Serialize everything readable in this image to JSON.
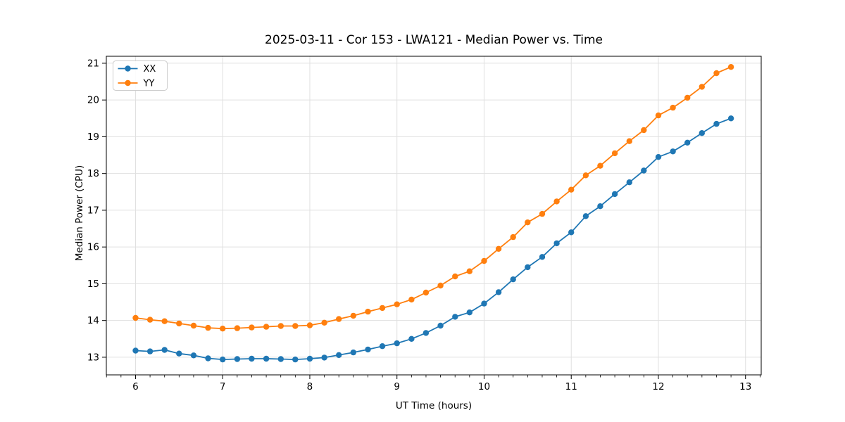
{
  "figure": {
    "background": "#ffffff",
    "text_color": "#000000"
  },
  "chart_data": {
    "type": "line",
    "title": "2025-03-11 - Cor 153 - LWA121 - Median Power vs. Time",
    "xlabel": "UT Time (hours)",
    "ylabel": "Median Power (CPU)",
    "xlim": [
      5.665,
      13.18
    ],
    "ylim": [
      12.52,
      21.19
    ],
    "xticks": [
      6,
      7,
      8,
      9,
      10,
      11,
      12,
      13
    ],
    "yticks": [
      13,
      14,
      15,
      16,
      17,
      18,
      19,
      20,
      21
    ],
    "x_minor_step": 0.166667,
    "grid": true,
    "grid_color": "#e0e0e0",
    "spine_color": "#000000",
    "legend_position": "upper-left",
    "legend_border_color": "#cccccc",
    "x": [
      6.0,
      6.167,
      6.333,
      6.5,
      6.667,
      6.833,
      7.0,
      7.167,
      7.333,
      7.5,
      7.667,
      7.833,
      8.0,
      8.167,
      8.333,
      8.5,
      8.667,
      8.833,
      9.0,
      9.167,
      9.333,
      9.5,
      9.667,
      9.833,
      10.0,
      10.167,
      10.333,
      10.5,
      10.667,
      10.833,
      11.0,
      11.167,
      11.333,
      11.5,
      11.667,
      11.833,
      12.0,
      12.167,
      12.333,
      12.5,
      12.667,
      12.833
    ],
    "series": [
      {
        "name": "XX",
        "color": "#1f77b4",
        "values": [
          13.18,
          13.16,
          13.2,
          13.1,
          13.05,
          12.97,
          12.94,
          12.95,
          12.96,
          12.96,
          12.95,
          12.94,
          12.96,
          12.99,
          13.06,
          13.13,
          13.21,
          13.3,
          13.38,
          13.5,
          13.66,
          13.86,
          14.1,
          14.22,
          14.46,
          14.77,
          15.12,
          15.45,
          15.73,
          16.1,
          16.4,
          16.84,
          17.11,
          17.44,
          17.76,
          18.08,
          18.45,
          18.6,
          18.84,
          19.1,
          19.35,
          19.5
        ]
      },
      {
        "name": "YY",
        "color": "#ff7f0e",
        "values": [
          14.07,
          14.02,
          13.98,
          13.92,
          13.86,
          13.8,
          13.78,
          13.79,
          13.81,
          13.83,
          13.85,
          13.85,
          13.87,
          13.94,
          14.04,
          14.13,
          14.24,
          14.34,
          14.44,
          14.57,
          14.76,
          14.95,
          15.2,
          15.34,
          15.62,
          15.95,
          16.27,
          16.67,
          16.9,
          17.24,
          17.56,
          17.95,
          18.21,
          18.55,
          18.88,
          19.18,
          19.58,
          19.79,
          20.06,
          20.36,
          20.73,
          20.9
        ]
      }
    ]
  }
}
